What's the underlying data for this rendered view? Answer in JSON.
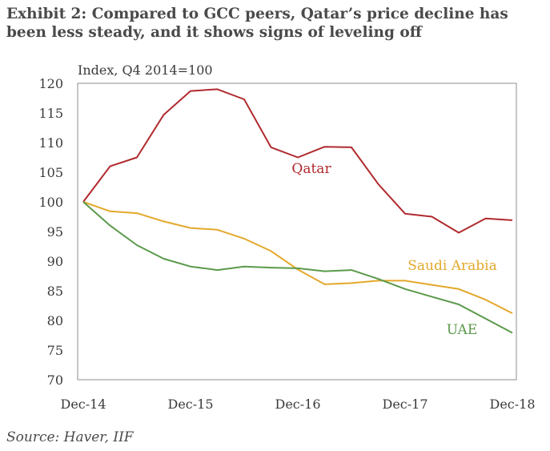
{
  "title": "Exhibit 2: Compared to GCC peers, Qatar’s price decline has been less steady, and it shows signs of leveling off",
  "source": "Source: Haver, IIF",
  "chart_data": {
    "type": "line",
    "ylabel": "Index, Q4 2014=100",
    "ylim": [
      70,
      120
    ],
    "yticks": [
      70,
      75,
      80,
      85,
      90,
      95,
      100,
      105,
      110,
      115,
      120
    ],
    "xlim": [
      0,
      16
    ],
    "xticks": [
      {
        "pos": 0,
        "label": "Dec-14"
      },
      {
        "pos": 4,
        "label": "Dec-15"
      },
      {
        "pos": 8,
        "label": "Dec-16"
      },
      {
        "pos": 12,
        "label": "Dec-17"
      },
      {
        "pos": 16,
        "label": "Dec-18"
      }
    ],
    "x": [
      0,
      1,
      2,
      3,
      4,
      5,
      6,
      7,
      8,
      9,
      10,
      11,
      12,
      13,
      14,
      15,
      16
    ],
    "grid": false,
    "series": [
      {
        "name": "Qatar",
        "color": "#b02a2e",
        "values": [
          100,
          106,
          107.5,
          114.7,
          118.7,
          119,
          117.3,
          109.2,
          107.5,
          109.3,
          109.2,
          103,
          98,
          97.5,
          94.8,
          97.2,
          96.9
        ]
      },
      {
        "name": "Saudi Arabia",
        "color": "#e3a82b",
        "values": [
          100,
          98.4,
          98.1,
          96.7,
          95.6,
          95.3,
          93.8,
          91.7,
          88.6,
          86.1,
          86.3,
          86.7,
          86.7,
          86,
          85.3,
          83.5,
          81.2
        ]
      },
      {
        "name": "UAE",
        "color": "#5a9a4a",
        "values": [
          100,
          96,
          92.7,
          90.4,
          89.1,
          88.5,
          89.1,
          88.9,
          88.8,
          88.3,
          88.5,
          87,
          85.3,
          84,
          82.7,
          80.3,
          77.9
        ]
      }
    ]
  }
}
